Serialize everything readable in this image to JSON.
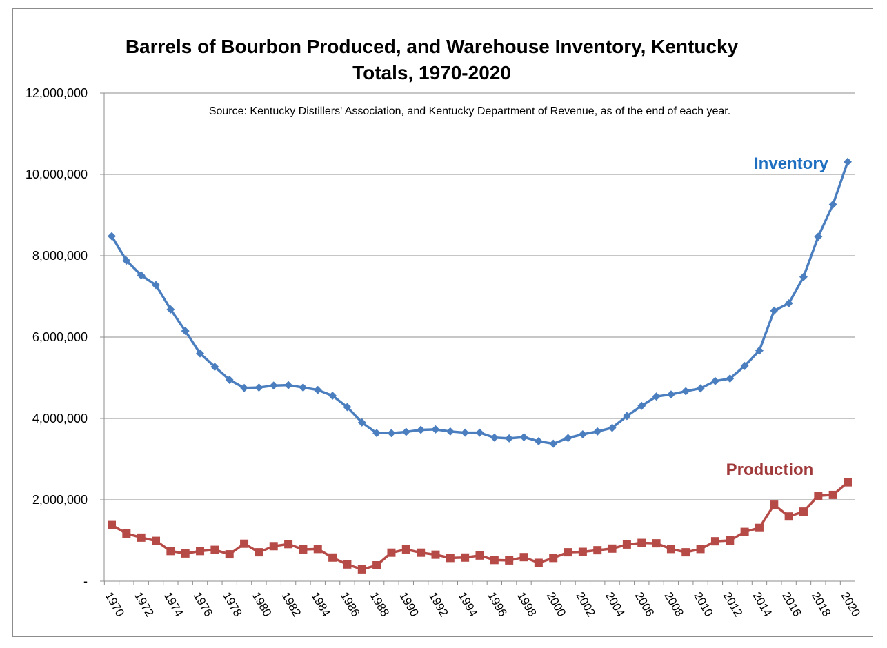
{
  "chart_data": {
    "type": "line",
    "title": [
      "Barrels of Bourbon Produced, and Warehouse Inventory, Kentucky",
      "Totals, 1970-2020"
    ],
    "source_note": "Source: Kentucky Distillers' Association, and Kentucky Department of Revenue, as of the end of each year.",
    "xlabel": "",
    "ylabel": "",
    "ylim": [
      0,
      12000000
    ],
    "y_ticks": [
      0,
      2000000,
      4000000,
      6000000,
      8000000,
      10000000,
      12000000
    ],
    "y_tick_labels": [
      "-",
      "2,000,000",
      "4,000,000",
      "6,000,000",
      "8,000,000",
      "10,000,000",
      "12,000,000"
    ],
    "x": [
      1970,
      1971,
      1972,
      1973,
      1974,
      1975,
      1976,
      1977,
      1978,
      1979,
      1980,
      1981,
      1982,
      1983,
      1984,
      1985,
      1986,
      1987,
      1988,
      1989,
      1990,
      1991,
      1992,
      1993,
      1994,
      1995,
      1996,
      1997,
      1998,
      1999,
      2000,
      2001,
      2002,
      2003,
      2004,
      2005,
      2006,
      2007,
      2008,
      2009,
      2010,
      2011,
      2012,
      2013,
      2014,
      2015,
      2016,
      2017,
      2018,
      2019,
      2020
    ],
    "x_tick_labels": [
      "1970",
      "1972",
      "1974",
      "1976",
      "1978",
      "1980",
      "1982",
      "1984",
      "1986",
      "1988",
      "1990",
      "1992",
      "1994",
      "1996",
      "1998",
      "2000",
      "2002",
      "2004",
      "2006",
      "2008",
      "2010",
      "2012",
      "2014",
      "2016",
      "2018",
      "2020"
    ],
    "grid": true,
    "series": [
      {
        "name": "Inventory",
        "color": "#4a7ebf",
        "marker": "diamond",
        "values": [
          8480000,
          7880000,
          7520000,
          7280000,
          6680000,
          6150000,
          5600000,
          5270000,
          4950000,
          4750000,
          4760000,
          4810000,
          4820000,
          4760000,
          4700000,
          4560000,
          4280000,
          3900000,
          3640000,
          3640000,
          3670000,
          3720000,
          3730000,
          3680000,
          3650000,
          3650000,
          3530000,
          3510000,
          3540000,
          3440000,
          3380000,
          3520000,
          3610000,
          3680000,
          3770000,
          4060000,
          4310000,
          4540000,
          4590000,
          4670000,
          4740000,
          4920000,
          4980000,
          5290000,
          5670000,
          6650000,
          6830000,
          7480000,
          8470000,
          9260000,
          10310000
        ]
      },
      {
        "name": "Production",
        "color": "#b64a47",
        "marker": "square",
        "values": [
          1380000,
          1170000,
          1070000,
          990000,
          740000,
          680000,
          740000,
          770000,
          660000,
          920000,
          710000,
          860000,
          910000,
          780000,
          790000,
          580000,
          410000,
          290000,
          390000,
          700000,
          780000,
          700000,
          650000,
          570000,
          580000,
          630000,
          520000,
          510000,
          590000,
          450000,
          570000,
          710000,
          720000,
          760000,
          800000,
          900000,
          940000,
          930000,
          790000,
          710000,
          790000,
          980000,
          1000000,
          1210000,
          1310000,
          1880000,
          1590000,
          1710000,
          2100000,
          2120000,
          2430000
        ]
      }
    ]
  }
}
